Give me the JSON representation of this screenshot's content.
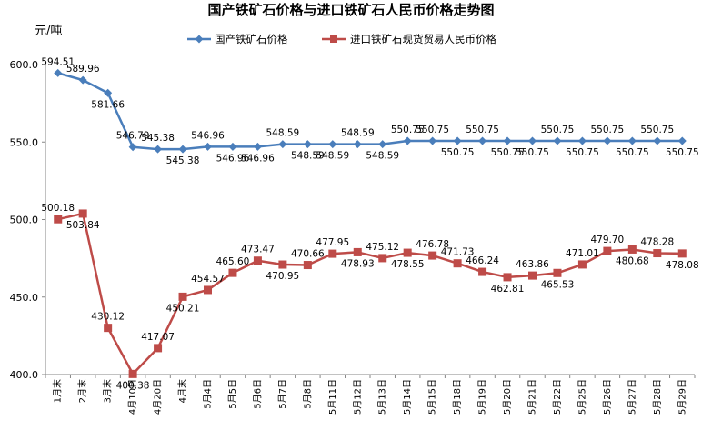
{
  "chart_data": {
    "type": "line",
    "title": "国产铁矿石价格与进口铁矿石人民币价格走势图",
    "ylabel": "元/吨",
    "xlabel": "",
    "ylim": [
      400,
      600
    ],
    "yticks": [
      "400.0",
      "450.0",
      "500.0",
      "550.0",
      "600.0"
    ],
    "grid": false,
    "legend": "top",
    "categories": [
      "1月末",
      "2月末",
      "3月末",
      "4月10日",
      "4月20日",
      "4月末",
      "5月4日",
      "5月5日",
      "5月6日",
      "5月7日",
      "5月8日",
      "5月11日",
      "5月12日",
      "5月13日",
      "5月14日",
      "5月15日",
      "5月18日",
      "5月19日",
      "5月20日",
      "5月21日",
      "5月22日",
      "5月25日",
      "5月26日",
      "5月27日",
      "5月28日",
      "5月29日"
    ],
    "series": [
      {
        "name": "国产铁矿石价格",
        "color": "#4a7ebb",
        "marker": "diamond",
        "values": [
          594.51,
          589.96,
          581.66,
          546.79,
          545.38,
          545.38,
          546.96,
          546.96,
          546.96,
          548.59,
          548.59,
          548.59,
          548.59,
          548.59,
          550.75,
          550.75,
          550.75,
          550.75,
          550.75,
          550.75,
          550.75,
          550.75,
          550.75,
          550.75,
          550.75,
          550.75
        ],
        "labels": [
          "594.51",
          "589.96",
          "581.66",
          "546.79",
          "545.38",
          "545.38",
          "546.96",
          "546.96",
          "546.96",
          "548.59",
          "548.59",
          "548.59",
          "548.59",
          "548.59",
          "550.75",
          "550.75",
          "550.75",
          "550.75",
          "550.75",
          "550.75",
          "550.75",
          "550.75",
          "550.75",
          "550.75",
          "550.75",
          "550.75"
        ]
      },
      {
        "name": "进口铁矿石现货贸易人民币价格",
        "color": "#be4b48",
        "marker": "square",
        "values": [
          500.18,
          503.84,
          430.12,
          400.38,
          417.07,
          450.21,
          454.57,
          465.6,
          473.47,
          470.95,
          470.66,
          477.95,
          478.93,
          475.12,
          478.55,
          476.78,
          471.73,
          466.24,
          462.81,
          463.86,
          465.53,
          471.01,
          479.7,
          480.68,
          478.28,
          478.08
        ],
        "labels": [
          "500.18",
          "503.84",
          "430.12",
          "400.38",
          "417.07",
          "450.21",
          "454.57",
          "465.60",
          "473.47",
          "470.95",
          "470.66",
          "477.95",
          "478.93",
          "475.12",
          "478.55",
          "476.78",
          "471.73",
          "466.24",
          "462.81",
          "463.86",
          "465.53",
          "471.01",
          "479.70",
          "480.68",
          "478.28",
          "478.08"
        ]
      }
    ]
  }
}
